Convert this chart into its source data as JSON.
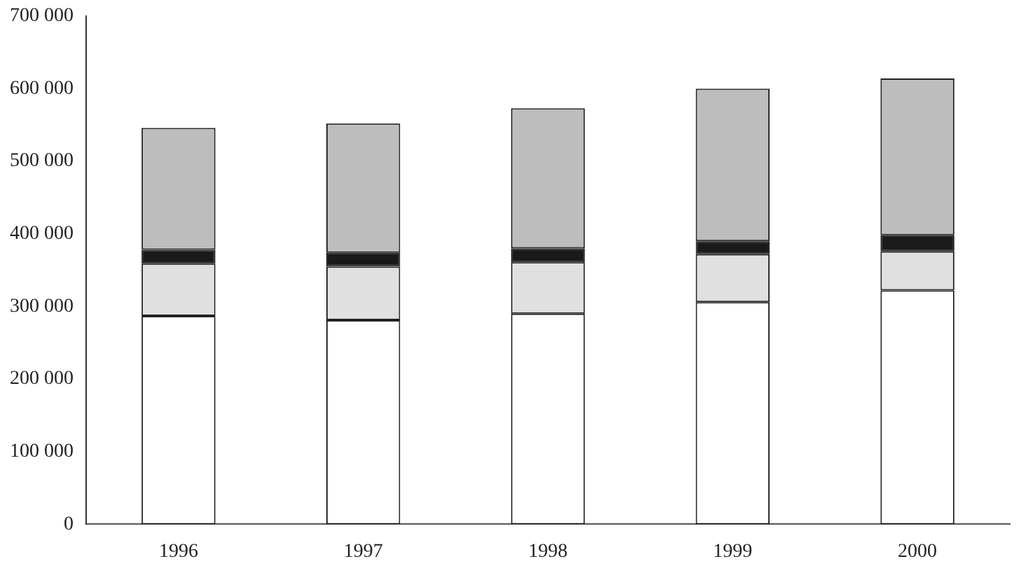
{
  "chart_data": {
    "type": "bar",
    "stacked": true,
    "categories": [
      "1996",
      "1997",
      "1998",
      "1999",
      "2000"
    ],
    "series": [
      {
        "color": "#ffffff",
        "values": [
          287000,
          281000,
          290000,
          306000,
          322000
        ]
      },
      {
        "color": "#e0e0e0",
        "values": [
          72000,
          74000,
          71000,
          66000,
          54000
        ]
      },
      {
        "color": "#1a1a1a",
        "values": [
          19000,
          19000,
          19000,
          18000,
          22000
        ]
      },
      {
        "color": "#bdbdbd",
        "values": [
          168000,
          178000,
          193000,
          210000,
          216000
        ]
      }
    ],
    "ylim": [
      0,
      700000
    ],
    "yticks": [
      0,
      {
        "value": 100000,
        "label": "100 000"
      },
      {
        "value": 200000,
        "label": "200 000"
      },
      {
        "value": 300000,
        "label": "300 000"
      },
      {
        "value": 400000,
        "label": "400 000"
      },
      {
        "value": 500000,
        "label": "500 000"
      },
      {
        "value": 600000,
        "label": "600 000"
      },
      {
        "value": 700000,
        "label": "700 000"
      }
    ],
    "grid": false,
    "legend": false
  }
}
